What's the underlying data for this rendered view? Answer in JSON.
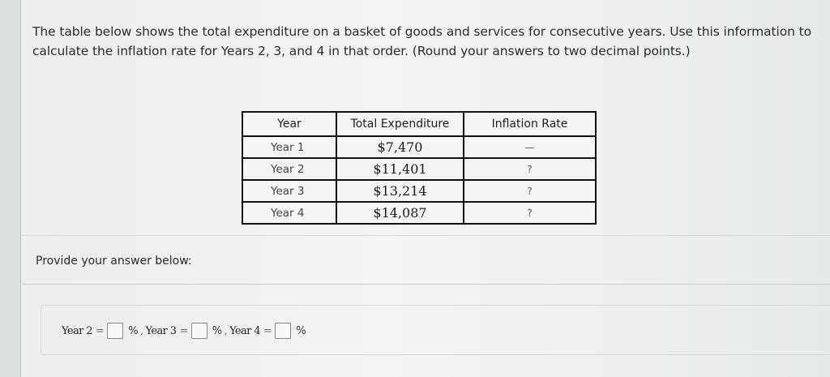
{
  "question": {
    "text": "The table below shows the total expenditure on a basket of goods and services for consecutive years. Use this information to calculate the inflation rate for Years 2, 3, and 4 in that order. (Round your answers to two decimal points.)"
  },
  "table": {
    "headers": [
      "Year",
      "Total Expenditure",
      "Inflation Rate"
    ],
    "rows": [
      {
        "year": "Year 1",
        "expenditure": "$7,470",
        "rate": "—"
      },
      {
        "year": "Year 2",
        "expenditure": "$11,401",
        "rate": "?"
      },
      {
        "year": "Year 3",
        "expenditure": "$13,214",
        "rate": "?"
      },
      {
        "year": "Year 4",
        "expenditure": "$14,087",
        "rate": "?"
      }
    ]
  },
  "answer": {
    "prompt": "Provide your answer below:",
    "fields": [
      {
        "label": "Year 2",
        "eq": "=",
        "value": "",
        "unit": "%",
        "sep": ","
      },
      {
        "label": "Year 3",
        "eq": "=",
        "value": "",
        "unit": "%",
        "sep": ","
      },
      {
        "label": "Year 4",
        "eq": "=",
        "value": "",
        "unit": "%",
        "sep": ""
      }
    ]
  }
}
